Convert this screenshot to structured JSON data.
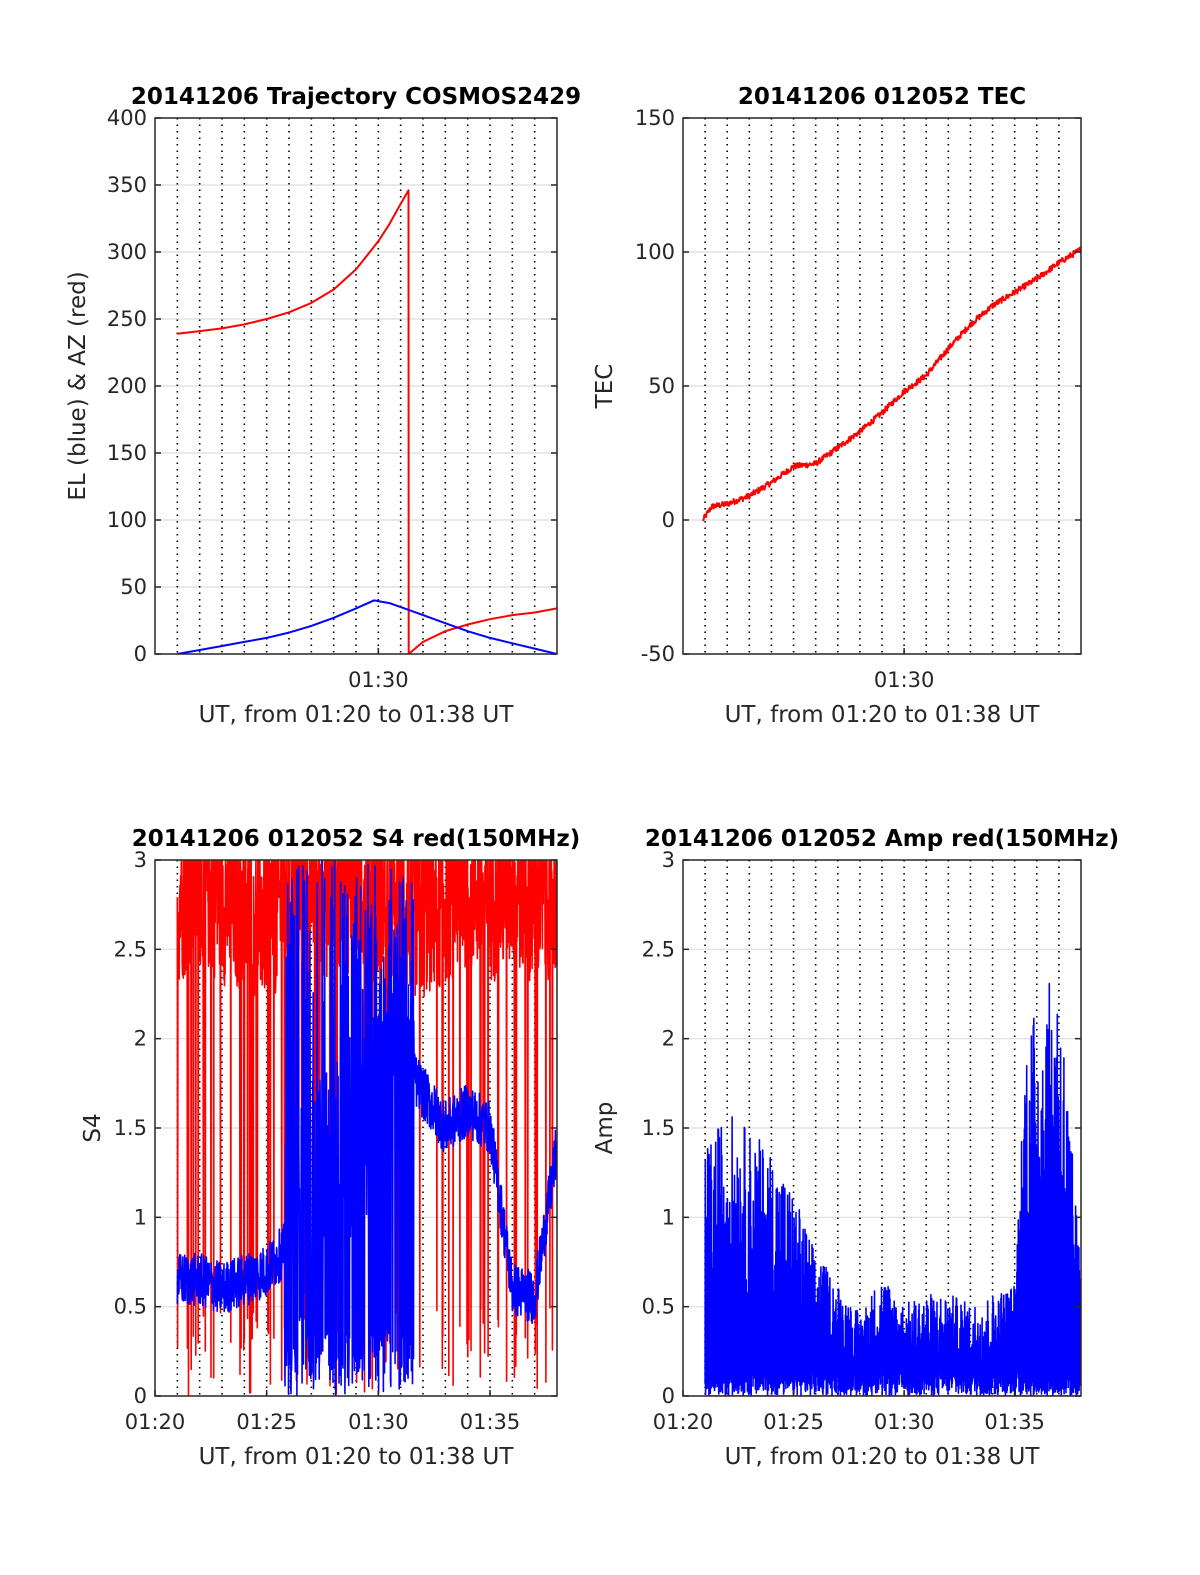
{
  "figure": {
    "background": "#ffffff",
    "colors": {
      "red": "#ff0000",
      "blue": "#0000ff",
      "frame": "#262626",
      "grid": "#dcdcdc"
    }
  },
  "chart_data": [
    {
      "id": "trajectory",
      "type": "line",
      "title": "20141206 Trajectory COSMOS2429",
      "xlabel": "UT, from 01:20 to 01:38 UT",
      "ylabel": "EL (blue) & AZ (red)",
      "xlim": [
        "01:20",
        "01:38"
      ],
      "ylim": [
        0,
        400
      ],
      "yticks": [
        0,
        50,
        100,
        150,
        200,
        250,
        300,
        350,
        400
      ],
      "xtick_labels": [
        "01:30"
      ],
      "grid": "horizontal solid lines; vertical dotted lines",
      "series": [
        {
          "color": "red",
          "x": [
            "01:21.0",
            "01:22.0",
            "01:23.0",
            "01:24.0",
            "01:25.0",
            "01:26.0",
            "01:27.0",
            "01:28.0",
            "01:29.0",
            "01:30.0",
            "01:30.5",
            "01:31.0",
            "01:31.35",
            "01:31.36",
            "01:32.0",
            "01:33.0",
            "01:34.0",
            "01:35.0",
            "01:36.0",
            "01:37.0",
            "01:38.0"
          ],
          "y": [
            239,
            241,
            243,
            246,
            250,
            255,
            262,
            272,
            287,
            308,
            321,
            336,
            346,
            0,
            9,
            17,
            22,
            26,
            29,
            31,
            34
          ]
        },
        {
          "color": "blue",
          "x": [
            "01:21.0",
            "01:22.0",
            "01:23.0",
            "01:24.0",
            "01:25.0",
            "01:26.0",
            "01:27.0",
            "01:28.0",
            "01:29.0",
            "01:29.8",
            "01:30.5",
            "01:31.0",
            "01:32.0",
            "01:33.0",
            "01:34.0",
            "01:35.0",
            "01:36.0",
            "01:37.0",
            "01:38.0"
          ],
          "y": [
            0,
            3,
            6,
            9,
            12,
            16,
            21,
            27,
            34,
            40,
            38,
            35,
            29,
            23,
            17,
            12,
            8,
            4,
            0
          ]
        }
      ]
    },
    {
      "id": "tec",
      "type": "line",
      "title": "20141206 012052 TEC",
      "xlabel": "UT, from 01:20 to 01:38 UT",
      "ylabel": "TEC",
      "xlim": [
        "01:20",
        "01:38"
      ],
      "ylim": [
        -50,
        150
      ],
      "yticks": [
        -50,
        0,
        50,
        100,
        150
      ],
      "xtick_labels": [
        "01:30"
      ],
      "grid": "horizontal solid lines; vertical dotted lines",
      "series": [
        {
          "color": "red",
          "x": [
            "01:20.9",
            "01:21.3",
            "01:22.0",
            "01:23.0",
            "01:24.0",
            "01:25.0",
            "01:26.0",
            "01:27.0",
            "01:28.0",
            "01:29.0",
            "01:30.0",
            "01:31.0",
            "01:32.0",
            "01:33.0",
            "01:34.0",
            "01:35.0",
            "01:36.0",
            "01:37.0",
            "01:38.0"
          ],
          "y": [
            0,
            5,
            6,
            9,
            14,
            20,
            21,
            27,
            33,
            40,
            48,
            54,
            64,
            73,
            80,
            85,
            90,
            96,
            101
          ]
        }
      ]
    },
    {
      "id": "s4",
      "type": "line",
      "title": "20141206 012052 S4 red(150MHz)",
      "xlabel": "UT, from 01:20 to 01:38 UT",
      "ylabel": "S4",
      "xlim": [
        "01:20",
        "01:38"
      ],
      "ylim": [
        0,
        3
      ],
      "yticks": [
        0,
        0.5,
        1,
        1.5,
        2,
        2.5,
        3
      ],
      "xtick_labels": [
        "01:20",
        "01:25",
        "01:30",
        "01:35"
      ],
      "grid": "horizontal solid lines; vertical dotted lines",
      "series": [
        {
          "color": "red",
          "x": [
            "01:21.0",
            "01:22.0",
            "01:23.0",
            "01:24.0",
            "01:25.0",
            "01:26.0",
            "01:27.0",
            "01:28.0",
            "01:29.0",
            "01:30.0",
            "01:31.0",
            "01:32.0",
            "01:33.0",
            "01:34.0",
            "01:35.0",
            "01:36.0",
            "01:37.0",
            "01:38.0"
          ],
          "y": [
            2.6,
            2.7,
            2.6,
            2.55,
            2.5,
            2.6,
            2.7,
            2.6,
            2.7,
            2.6,
            2.55,
            2.5,
            2.6,
            2.7,
            2.6,
            2.7,
            2.6,
            2.65
          ]
        },
        {
          "color": "blue",
          "x": [
            "01:21.0",
            "01:22.0",
            "01:23.0",
            "01:24.0",
            "01:25.0",
            "01:26.0",
            "01:27.0",
            "01:28.0",
            "01:29.0",
            "01:30.0",
            "01:31.0",
            "01:32.0",
            "01:33.0",
            "01:34.0",
            "01:35.0",
            "01:36.0",
            "01:37.0",
            "01:38.0"
          ],
          "y": [
            0.65,
            0.65,
            0.6,
            0.65,
            0.7,
            0.85,
            1.2,
            1.3,
            1.5,
            1.6,
            1.9,
            1.7,
            1.5,
            1.6,
            1.5,
            0.6,
            0.55,
            1.4
          ]
        }
      ]
    },
    {
      "id": "amp",
      "type": "line",
      "title": "20141206 012052 Amp red(150MHz)",
      "xlabel": "UT, from 01:20 to 01:38 UT",
      "ylabel": "Amp",
      "xlim": [
        "01:20",
        "01:38"
      ],
      "ylim": [
        0,
        3
      ],
      "yticks": [
        0,
        0.5,
        1,
        1.5,
        2,
        2.5,
        3
      ],
      "xtick_labels": [
        "01:20",
        "01:25",
        "01:30",
        "01:35"
      ],
      "grid": "horizontal solid lines; vertical dotted lines",
      "series": [
        {
          "color": "red",
          "x": [
            "01:21.0",
            "01:38.0"
          ],
          "y": [
            0,
            0
          ]
        },
        {
          "color": "blue",
          "x": [
            "01:21.0",
            "01:22.0",
            "01:23.0",
            "01:24.0",
            "01:25.0",
            "01:26.0",
            "01:27.0",
            "01:28.0",
            "01:29.0",
            "01:30.0",
            "01:31.0",
            "01:32.0",
            "01:33.0",
            "01:34.0",
            "01:35.0",
            "01:35.5",
            "01:36.0",
            "01:37.0",
            "01:38.0"
          ],
          "y": [
            1.2,
            1.4,
            1.3,
            1.2,
            1.0,
            0.7,
            0.55,
            0.4,
            0.6,
            0.45,
            0.5,
            0.5,
            0.45,
            0.5,
            0.55,
            1.8,
            1.9,
            2.1,
            0.6
          ]
        }
      ]
    }
  ]
}
